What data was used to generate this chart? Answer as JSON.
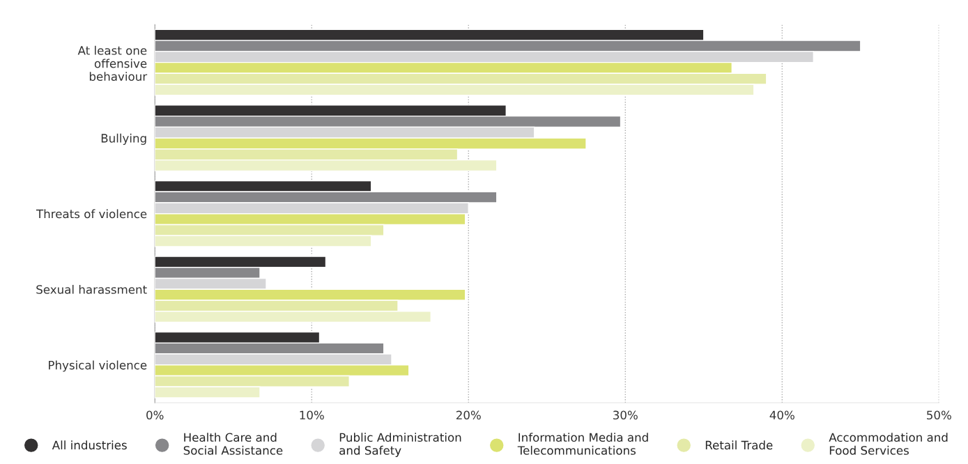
{
  "chart_data": {
    "type": "bar",
    "orientation": "horizontal",
    "categories": [
      "At least one\noffensive\nbehaviour",
      "Bullying",
      "Threats of violence",
      "Sexual harassment",
      "Physical violence"
    ],
    "series": [
      {
        "name": "All industries",
        "color": "#333132",
        "values": [
          35.0,
          22.4,
          13.8,
          10.9,
          10.5
        ]
      },
      {
        "name": "Health Care and\nSocial Assistance",
        "color": "#87878a",
        "values": [
          45.0,
          29.7,
          21.8,
          6.7,
          14.6
        ]
      },
      {
        "name": "Public Administration\nand Safety",
        "color": "#d5d5d7",
        "values": [
          42.0,
          24.2,
          20.0,
          7.1,
          15.1
        ]
      },
      {
        "name": "Information Media and\nTelecommunications",
        "color": "#dbe270",
        "values": [
          36.8,
          27.5,
          19.8,
          19.8,
          16.2
        ]
      },
      {
        "name": "Retail Trade",
        "color": "#e4eaa8",
        "values": [
          39.0,
          19.3,
          14.6,
          15.5,
          12.4
        ]
      },
      {
        "name": "Accommodation and\nFood Services",
        "color": "#ecf1c8",
        "values": [
          38.2,
          21.8,
          13.8,
          17.6,
          6.7
        ]
      }
    ],
    "xlim": [
      0,
      50
    ],
    "xticks": [
      {
        "value": 0,
        "label": "0%"
      },
      {
        "value": 10,
        "label": "10%"
      },
      {
        "value": 20,
        "label": "20%"
      },
      {
        "value": 30,
        "label": "30%"
      },
      {
        "value": 40,
        "label": "40%"
      },
      {
        "value": 50,
        "label": "50%"
      }
    ],
    "grid": "x",
    "legend": "bottom",
    "marker": "circle"
  }
}
